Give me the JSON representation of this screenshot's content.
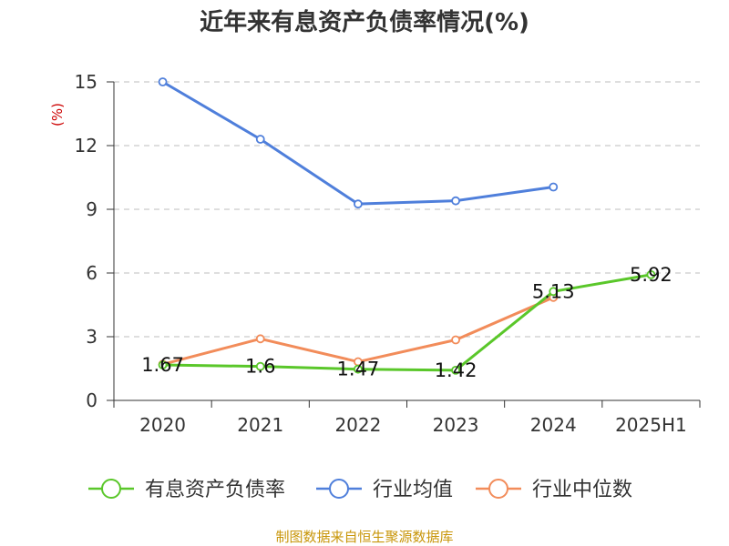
{
  "chart_data": {
    "type": "line",
    "title": "近年来有息资产负债率情况(%)",
    "ylabel": "(%)",
    "categories": [
      "2020",
      "2021",
      "2022",
      "2023",
      "2024",
      "2025H1"
    ],
    "yticks": [
      "0",
      "3",
      "6",
      "9",
      "12",
      "15"
    ],
    "ylim": [
      0,
      15
    ],
    "grid": true,
    "legend_position": "bottom",
    "series": [
      {
        "name": "有息资产负债率",
        "color": "#5ac72a",
        "values": [
          1.67,
          1.6,
          1.47,
          1.42,
          5.13,
          5.92
        ],
        "labels": [
          "1.67",
          "1.6",
          "1.47",
          "1.42",
          "5.13",
          "5.92"
        ]
      },
      {
        "name": "行业均值",
        "color": "#4f7fdb",
        "values": [
          15.0,
          12.3,
          9.25,
          9.4,
          10.05,
          null
        ]
      },
      {
        "name": "行业中位数",
        "color": "#f28c5a",
        "values": [
          1.7,
          2.9,
          1.82,
          2.85,
          4.85,
          null
        ]
      }
    ]
  },
  "source": "制图数据来自恒生聚源数据库"
}
